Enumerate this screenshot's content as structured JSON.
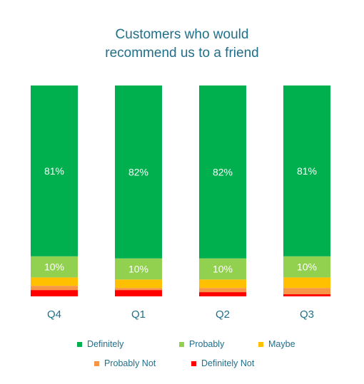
{
  "colors": {
    "title": "#1f6f8b",
    "axis_text": "#1f6f8b",
    "bar_label": "#ffffff"
  },
  "chart_data": {
    "type": "bar",
    "stacked": true,
    "title_lines": [
      "Customers who would",
      "recommend us to a friend"
    ],
    "categories": [
      "Q4",
      "Q1",
      "Q2",
      "Q3"
    ],
    "ylim": [
      0,
      100
    ],
    "grid": false,
    "legend_position": "bottom",
    "series": [
      {
        "name": "Definitely",
        "color": "#00b04f",
        "values": [
          81,
          82,
          82,
          81
        ],
        "labels": [
          "81%",
          "82%",
          "82%",
          "81%"
        ]
      },
      {
        "name": "Probably",
        "color": "#92d050",
        "values": [
          10,
          10,
          10,
          10
        ],
        "labels": [
          "10%",
          "10%",
          "10%",
          "10%"
        ]
      },
      {
        "name": "Maybe",
        "color": "#ffc000",
        "values": [
          4,
          4,
          4,
          5
        ],
        "labels": [
          "",
          "",
          "",
          ""
        ]
      },
      {
        "name": "Probably Not",
        "color": "#f79646",
        "values": [
          2,
          1,
          2,
          3
        ],
        "labels": [
          "",
          "",
          "",
          ""
        ]
      },
      {
        "name": "Definitely Not",
        "color": "#ff0000",
        "values": [
          3,
          3,
          2,
          1
        ],
        "labels": [
          "",
          "",
          "",
          ""
        ]
      }
    ]
  }
}
